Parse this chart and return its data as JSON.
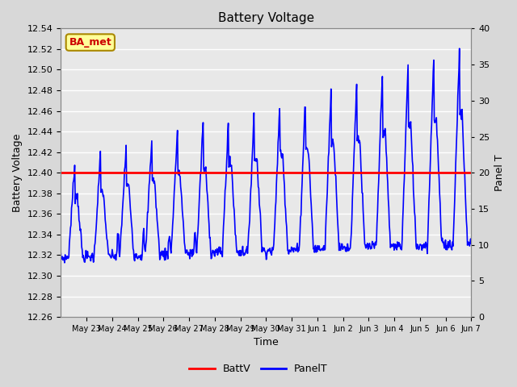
{
  "title": "Battery Voltage",
  "xlabel": "Time",
  "ylabel_left": "Battery Voltage",
  "ylabel_right": "Panel T",
  "ylim_left": [
    12.26,
    12.54
  ],
  "ylim_right": [
    0,
    40
  ],
  "yticks_left": [
    12.26,
    12.28,
    12.3,
    12.32,
    12.34,
    12.36,
    12.38,
    12.4,
    12.42,
    12.44,
    12.46,
    12.48,
    12.5,
    12.52,
    12.54
  ],
  "yticks_right": [
    0,
    5,
    10,
    15,
    20,
    25,
    30,
    35,
    40
  ],
  "battv_value": 12.4,
  "battv_color": "#ff0000",
  "panelt_color": "#0000ff",
  "bg_color": "#d8d8d8",
  "plot_bg_color": "#e8e8e8",
  "grid_color": "#ffffff",
  "annotation_text": "BA_met",
  "annotation_bg": "#ffff99",
  "annotation_border": "#aa8800",
  "annotation_text_color": "#cc0000",
  "legend_labels": [
    "BattV",
    "PanelT"
  ],
  "xtick_labels": [
    "May 23",
    "May 24",
    "May 25",
    "May 26",
    "May 27",
    "May 28",
    "May 29",
    "May 30",
    "May 31",
    "Jun 1",
    "Jun 2",
    "Jun 3",
    "Jun 4",
    "Jun 5",
    "Jun 6",
    "Jun 7"
  ],
  "n_days": 16,
  "pts_per_day": 48
}
